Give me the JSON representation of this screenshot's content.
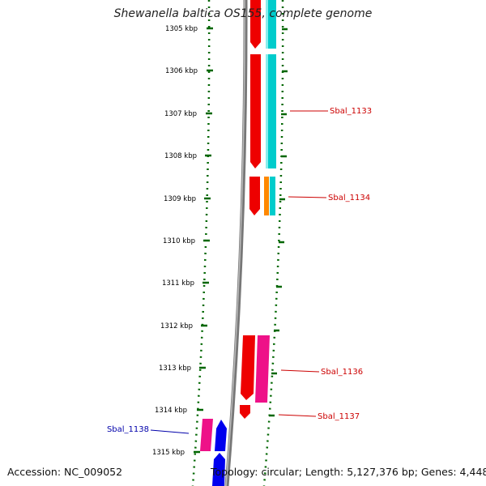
{
  "title": "Shewanella baltica OS155, complete genome",
  "ruler_ticks": [
    {
      "label": "1305 kbp"
    },
    {
      "label": "1306 kbp"
    },
    {
      "label": "1307 kbp"
    },
    {
      "label": "1308 kbp"
    },
    {
      "label": "1309 kbp"
    },
    {
      "label": "1310 kbp"
    },
    {
      "label": "1311 kbp"
    },
    {
      "label": "1312 kbp"
    },
    {
      "label": "1313 kbp"
    },
    {
      "label": "1314 kbp"
    },
    {
      "label": "1315 kbp"
    }
  ],
  "gene_labels": [
    {
      "text": "Sbal_1133",
      "color": "#cc0000"
    },
    {
      "text": "Sbal_1134",
      "color": "#cc0000"
    },
    {
      "text": "Sbal_1136",
      "color": "#cc0000"
    },
    {
      "text": "Sbal_1137",
      "color": "#cc0000"
    },
    {
      "text": "Sbal_1138",
      "color": "#0000aa"
    }
  ],
  "feature_colors": {
    "cds_forward": "#ee0000",
    "cds_reverse": "#0000ee",
    "rna_cyan": "#00cccc",
    "rna_pink": "#ee1188",
    "rna_orange": "#ff8800",
    "backbone": "#888888",
    "ruler": "#006600"
  },
  "footer": {
    "accession": "Accession: NC_009052",
    "summary": "Topology: circular; Length: 5,127,376 bp; Genes: 4,448"
  }
}
